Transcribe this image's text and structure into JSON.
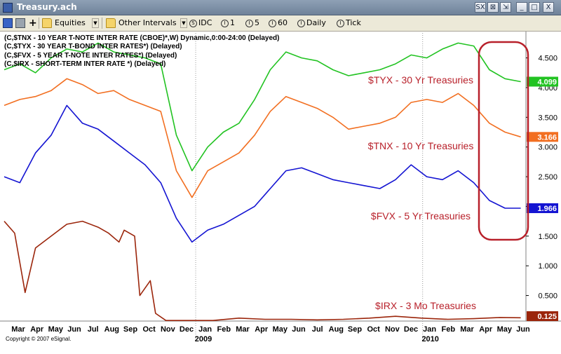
{
  "window": {
    "title": "Treasury.ach"
  },
  "titlebar_buttons": [
    "SX",
    "⊠",
    "⇲",
    "_",
    "□",
    "X"
  ],
  "toolbar": {
    "equities_label": "Equities",
    "intervals_label": "Other Intervals",
    "idc_label": "IDC",
    "int1_label": "1",
    "int5_label": "5",
    "int60_label": "60",
    "daily_label": "Daily",
    "tick_label": "Tick"
  },
  "legend": [
    "(C,$TNX - 10 YEAR T-NOTE INTER RATE (CBOE)*,W) Dynamic,0:00-24:00 (Delayed)",
    "(C,$TYX - 30 YEAR T-BOND INTER RATES*) (Delayed)",
    "(C,$FVX - 5 YEAR T-NOTE INTER RATES*) (Delayed)",
    "(C,$IRX - SHORT-TERM INTER RATE *) (Delayed)"
  ],
  "copyright": "Copyright © 2007 eSignal.",
  "colors": {
    "tyx": "#22c322",
    "tnx": "#f26f21",
    "fvx": "#1414d2",
    "irx": "#9b250b",
    "highlight": "#b8202a"
  },
  "chart_data": {
    "type": "line",
    "x_labels": [
      "Mar",
      "Apr",
      "May",
      "Jun",
      "Jul",
      "Aug",
      "Sep",
      "Oct",
      "Nov",
      "Dec",
      "Jan",
      "Feb",
      "Mar",
      "Apr",
      "May",
      "Jun",
      "Jul",
      "Aug",
      "Sep",
      "Oct",
      "Nov",
      "Dec",
      "Jan",
      "Feb",
      "Mar",
      "Apr",
      "May",
      "Jun"
    ],
    "year_labels": [
      "2009",
      "2010"
    ],
    "y_ticks": [
      4.5,
      4.0,
      3.5,
      3.0,
      2.5,
      2.0,
      1.5,
      1.0,
      0.5
    ],
    "y_tick_labels": [
      "4.500",
      "4.000",
      "3.500",
      "3.000",
      "2.500",
      "2.000",
      "1.500",
      "1.000",
      "0.500"
    ],
    "ylim": [
      0.07,
      4.92
    ],
    "xlim": [
      0,
      100
    ],
    "series": [
      {
        "name": "$TYX - 30 Yr Treasuries",
        "last": "4.099",
        "points": [
          [
            0,
            4.3
          ],
          [
            3,
            4.4
          ],
          [
            6,
            4.25
          ],
          [
            9,
            4.5
          ],
          [
            12,
            4.65
          ],
          [
            15,
            4.6
          ],
          [
            18,
            4.75
          ],
          [
            21,
            4.6
          ],
          [
            24,
            4.55
          ],
          [
            27,
            4.5
          ],
          [
            30,
            4.4
          ],
          [
            33,
            3.2
          ],
          [
            36,
            2.6
          ],
          [
            39,
            3.0
          ],
          [
            42,
            3.25
          ],
          [
            45,
            3.4
          ],
          [
            48,
            3.8
          ],
          [
            51,
            4.3
          ],
          [
            54,
            4.6
          ],
          [
            57,
            4.5
          ],
          [
            60,
            4.45
          ],
          [
            63,
            4.3
          ],
          [
            66,
            4.2
          ],
          [
            69,
            4.25
          ],
          [
            72,
            4.3
          ],
          [
            75,
            4.4
          ],
          [
            78,
            4.55
          ],
          [
            81,
            4.5
          ],
          [
            84,
            4.65
          ],
          [
            87,
            4.75
          ],
          [
            90,
            4.7
          ],
          [
            93,
            4.3
          ],
          [
            96,
            4.15
          ],
          [
            99,
            4.1
          ]
        ]
      },
      {
        "name": "$TNX - 10 Yr Treasuries",
        "last": "3.166",
        "points": [
          [
            0,
            3.7
          ],
          [
            3,
            3.8
          ],
          [
            6,
            3.85
          ],
          [
            9,
            3.95
          ],
          [
            12,
            4.15
          ],
          [
            15,
            4.05
          ],
          [
            18,
            3.9
          ],
          [
            21,
            3.95
          ],
          [
            24,
            3.8
          ],
          [
            27,
            3.7
          ],
          [
            30,
            3.6
          ],
          [
            33,
            2.6
          ],
          [
            36,
            2.15
          ],
          [
            39,
            2.6
          ],
          [
            42,
            2.75
          ],
          [
            45,
            2.9
          ],
          [
            48,
            3.2
          ],
          [
            51,
            3.6
          ],
          [
            54,
            3.85
          ],
          [
            57,
            3.75
          ],
          [
            60,
            3.65
          ],
          [
            63,
            3.5
          ],
          [
            66,
            3.3
          ],
          [
            69,
            3.35
          ],
          [
            72,
            3.4
          ],
          [
            75,
            3.5
          ],
          [
            78,
            3.75
          ],
          [
            81,
            3.8
          ],
          [
            84,
            3.75
          ],
          [
            87,
            3.9
          ],
          [
            90,
            3.7
          ],
          [
            93,
            3.4
          ],
          [
            96,
            3.25
          ],
          [
            99,
            3.17
          ]
        ]
      },
      {
        "name": "$FVX - 5 Yr Treasuries",
        "last": "1.966",
        "points": [
          [
            0,
            2.5
          ],
          [
            3,
            2.4
          ],
          [
            6,
            2.9
          ],
          [
            9,
            3.2
          ],
          [
            12,
            3.7
          ],
          [
            15,
            3.4
          ],
          [
            18,
            3.3
          ],
          [
            21,
            3.1
          ],
          [
            24,
            2.9
          ],
          [
            27,
            2.7
          ],
          [
            30,
            2.4
          ],
          [
            33,
            1.8
          ],
          [
            36,
            1.4
          ],
          [
            39,
            1.6
          ],
          [
            42,
            1.7
          ],
          [
            45,
            1.85
          ],
          [
            48,
            2.0
          ],
          [
            51,
            2.3
          ],
          [
            54,
            2.6
          ],
          [
            57,
            2.65
          ],
          [
            60,
            2.55
          ],
          [
            63,
            2.45
          ],
          [
            66,
            2.4
          ],
          [
            69,
            2.35
          ],
          [
            72,
            2.3
          ],
          [
            75,
            2.45
          ],
          [
            78,
            2.7
          ],
          [
            81,
            2.5
          ],
          [
            84,
            2.45
          ],
          [
            87,
            2.6
          ],
          [
            90,
            2.4
          ],
          [
            93,
            2.1
          ],
          [
            96,
            1.97
          ],
          [
            99,
            1.97
          ]
        ]
      },
      {
        "name": "$IRX - 3 Mo Treasuries",
        "last": "0.125",
        "points": [
          [
            0,
            1.75
          ],
          [
            2,
            1.55
          ],
          [
            4,
            0.55
          ],
          [
            6,
            1.3
          ],
          [
            9,
            1.5
          ],
          [
            12,
            1.7
          ],
          [
            15,
            1.75
          ],
          [
            18,
            1.65
          ],
          [
            20,
            1.55
          ],
          [
            22,
            1.4
          ],
          [
            23,
            1.6
          ],
          [
            25,
            1.5
          ],
          [
            26,
            0.5
          ],
          [
            28,
            0.75
          ],
          [
            29,
            0.2
          ],
          [
            31,
            0.08
          ],
          [
            33,
            0.08
          ],
          [
            40,
            0.08
          ],
          [
            45,
            0.12
          ],
          [
            50,
            0.1
          ],
          [
            55,
            0.1
          ],
          [
            60,
            0.09
          ],
          [
            65,
            0.1
          ],
          [
            70,
            0.12
          ],
          [
            75,
            0.15
          ],
          [
            80,
            0.12
          ],
          [
            85,
            0.1
          ],
          [
            90,
            0.11
          ],
          [
            95,
            0.13
          ],
          [
            99,
            0.125
          ]
        ]
      }
    ],
    "annotations": [
      "$TYX - 30 Yr Treasuries",
      "$TNX - 10 Yr Treasuries",
      "$FVX - 5 Yr Treasuries",
      "$IRX - 3 Mo Treasuries"
    ]
  }
}
